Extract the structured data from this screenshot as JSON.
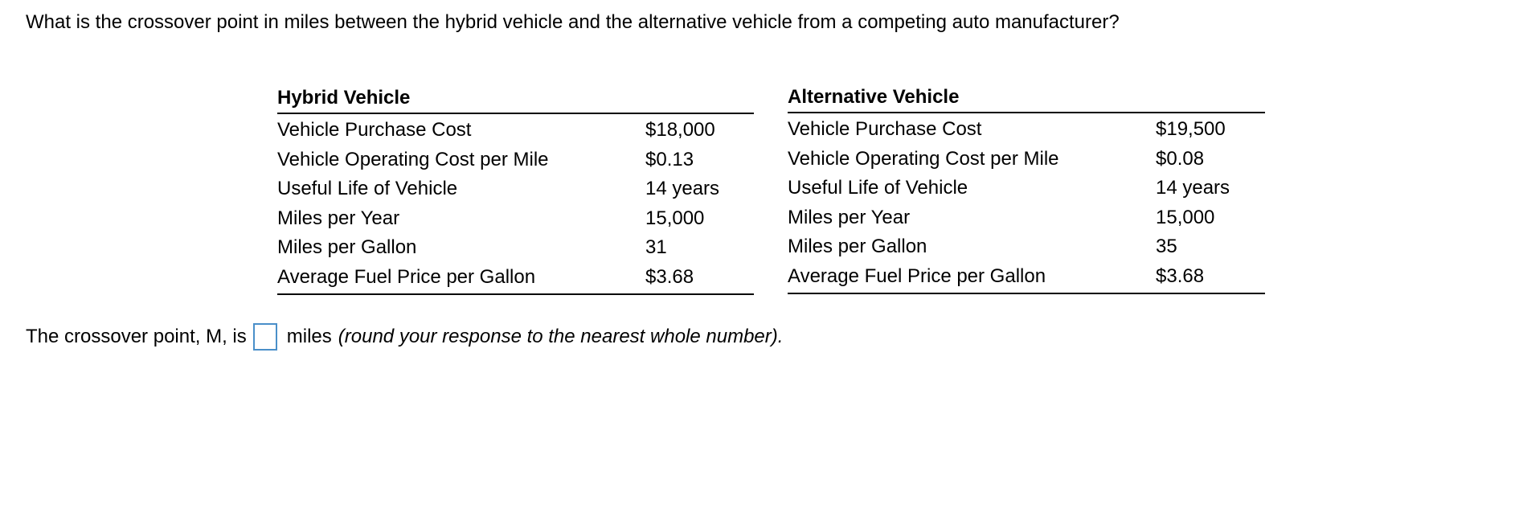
{
  "question": "What is the crossover point in miles between the hybrid vehicle and the alternative vehicle from a competing auto manufacturer?",
  "hybrid": {
    "title": "Hybrid Vehicle",
    "rows": [
      {
        "label": "Vehicle Purchase Cost",
        "value": "$18,000"
      },
      {
        "label": "Vehicle Operating Cost per Mile",
        "value": "$0.13"
      },
      {
        "label": "Useful Life of Vehicle",
        "value": "14 years"
      },
      {
        "label": "Miles per Year",
        "value": "15,000"
      },
      {
        "label": "Miles per Gallon",
        "value": "31"
      },
      {
        "label": "Average Fuel Price per Gallon",
        "value": "$3.68"
      }
    ]
  },
  "alternative": {
    "title": "Alternative Vehicle",
    "rows": [
      {
        "label": "Vehicle Purchase Cost",
        "value": "$19,500"
      },
      {
        "label": "Vehicle Operating Cost per Mile",
        "value": "$0.08"
      },
      {
        "label": "Useful Life of Vehicle",
        "value": "14 years"
      },
      {
        "label": "Miles per Year",
        "value": "15,000"
      },
      {
        "label": "Miles per Gallon",
        "value": "35"
      },
      {
        "label": "Average Fuel Price per Gallon",
        "value": "$3.68"
      }
    ]
  },
  "answer": {
    "prefix": "The crossover point, M, is",
    "value": "",
    "units": "miles",
    "hint": "(round your response to the nearest whole number)."
  },
  "colors": {
    "input_border": "#4a8fc9"
  }
}
